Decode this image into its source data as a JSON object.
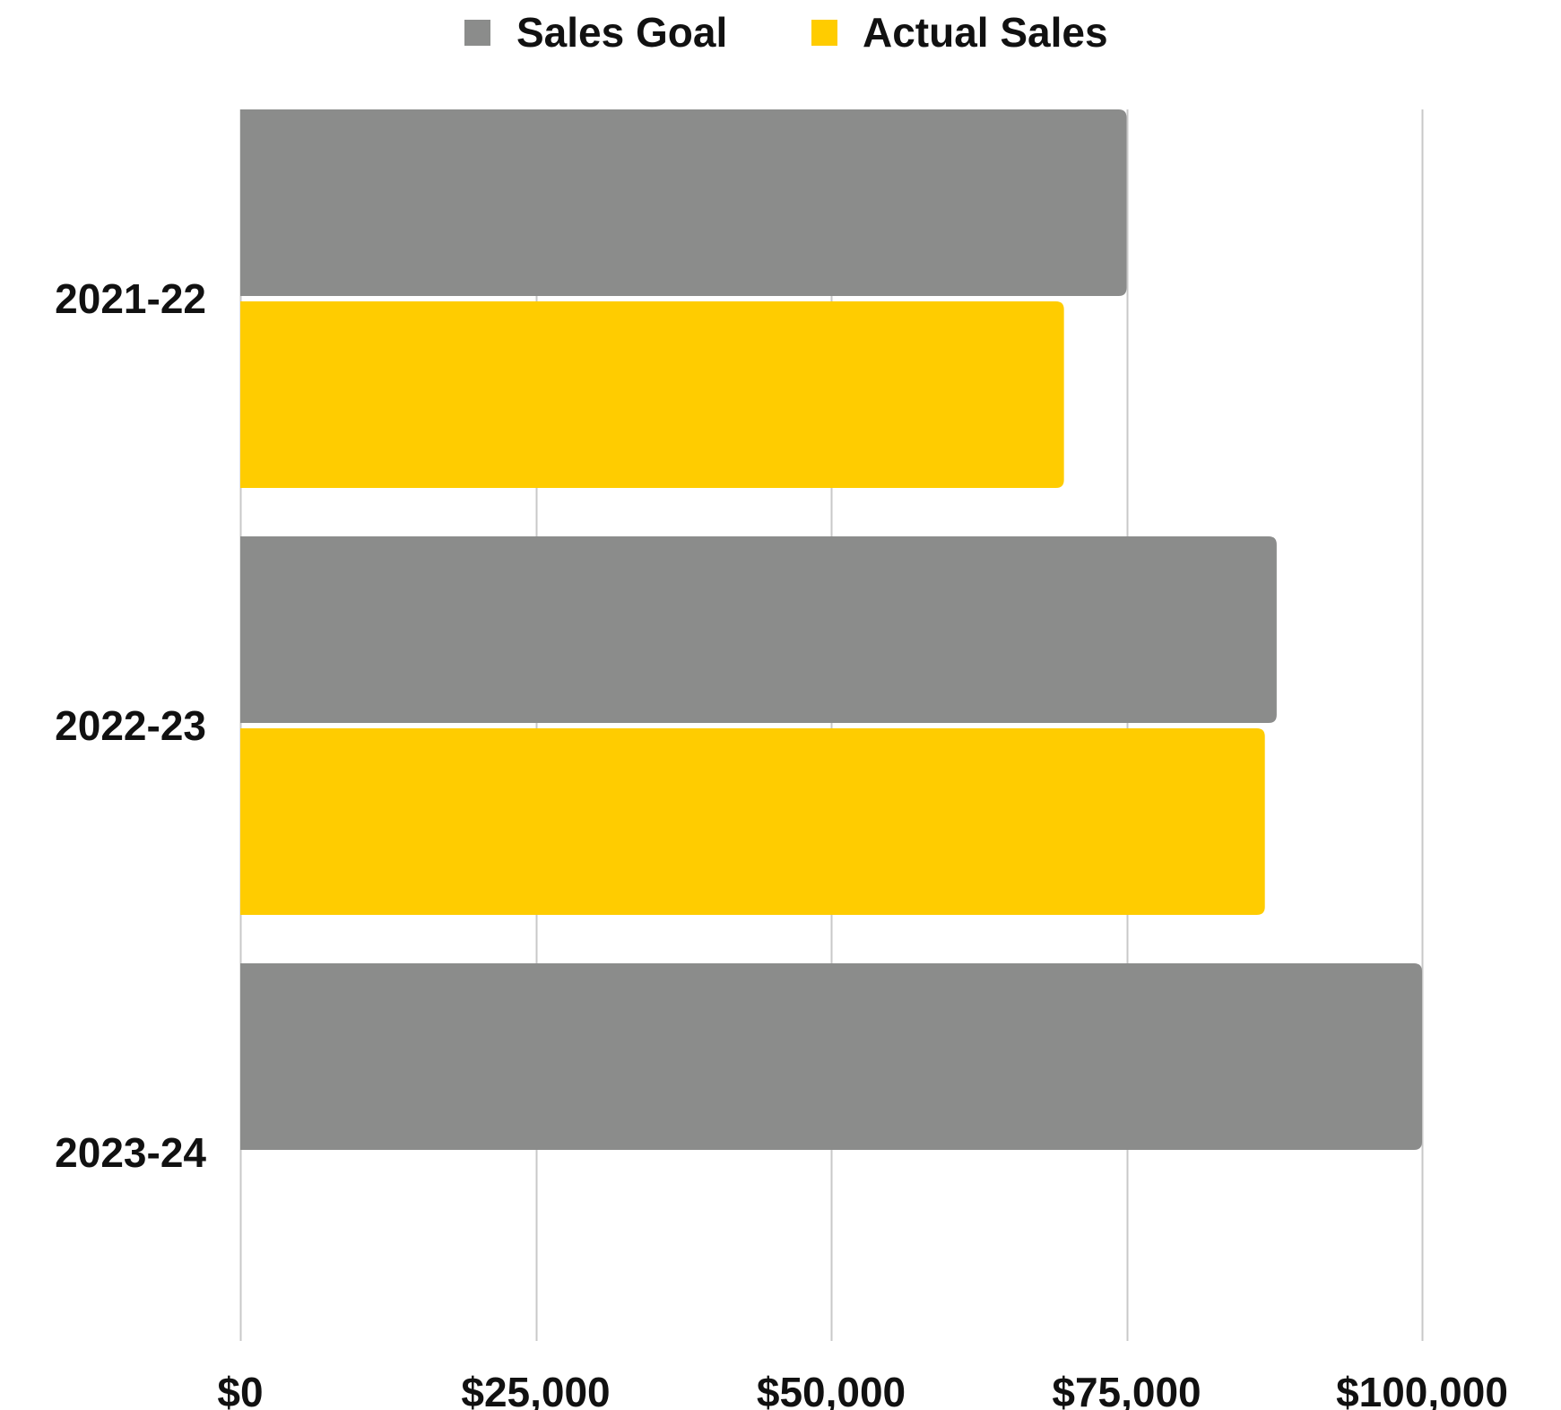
{
  "chart_data": {
    "type": "bar",
    "orientation": "horizontal",
    "categories": [
      "2021-22",
      "2022-23",
      "2023-24"
    ],
    "series": [
      {
        "name": "Sales Goal",
        "values": [
          75000,
          87700,
          100000
        ],
        "color": "#8b8c8b"
      },
      {
        "name": "Actual Sales",
        "values": [
          69700,
          86700,
          null
        ],
        "color": "#ffcc00"
      }
    ],
    "title": "",
    "xlabel": "",
    "ylabel": "",
    "xlim": [
      0,
      100000
    ],
    "ticks": [
      0,
      25000,
      50000,
      75000,
      100000
    ],
    "tick_labels": [
      "$0",
      "$25,000",
      "$50,000",
      "$75,000",
      "$100,000"
    ],
    "grid": true,
    "legend_position": "top-center"
  }
}
